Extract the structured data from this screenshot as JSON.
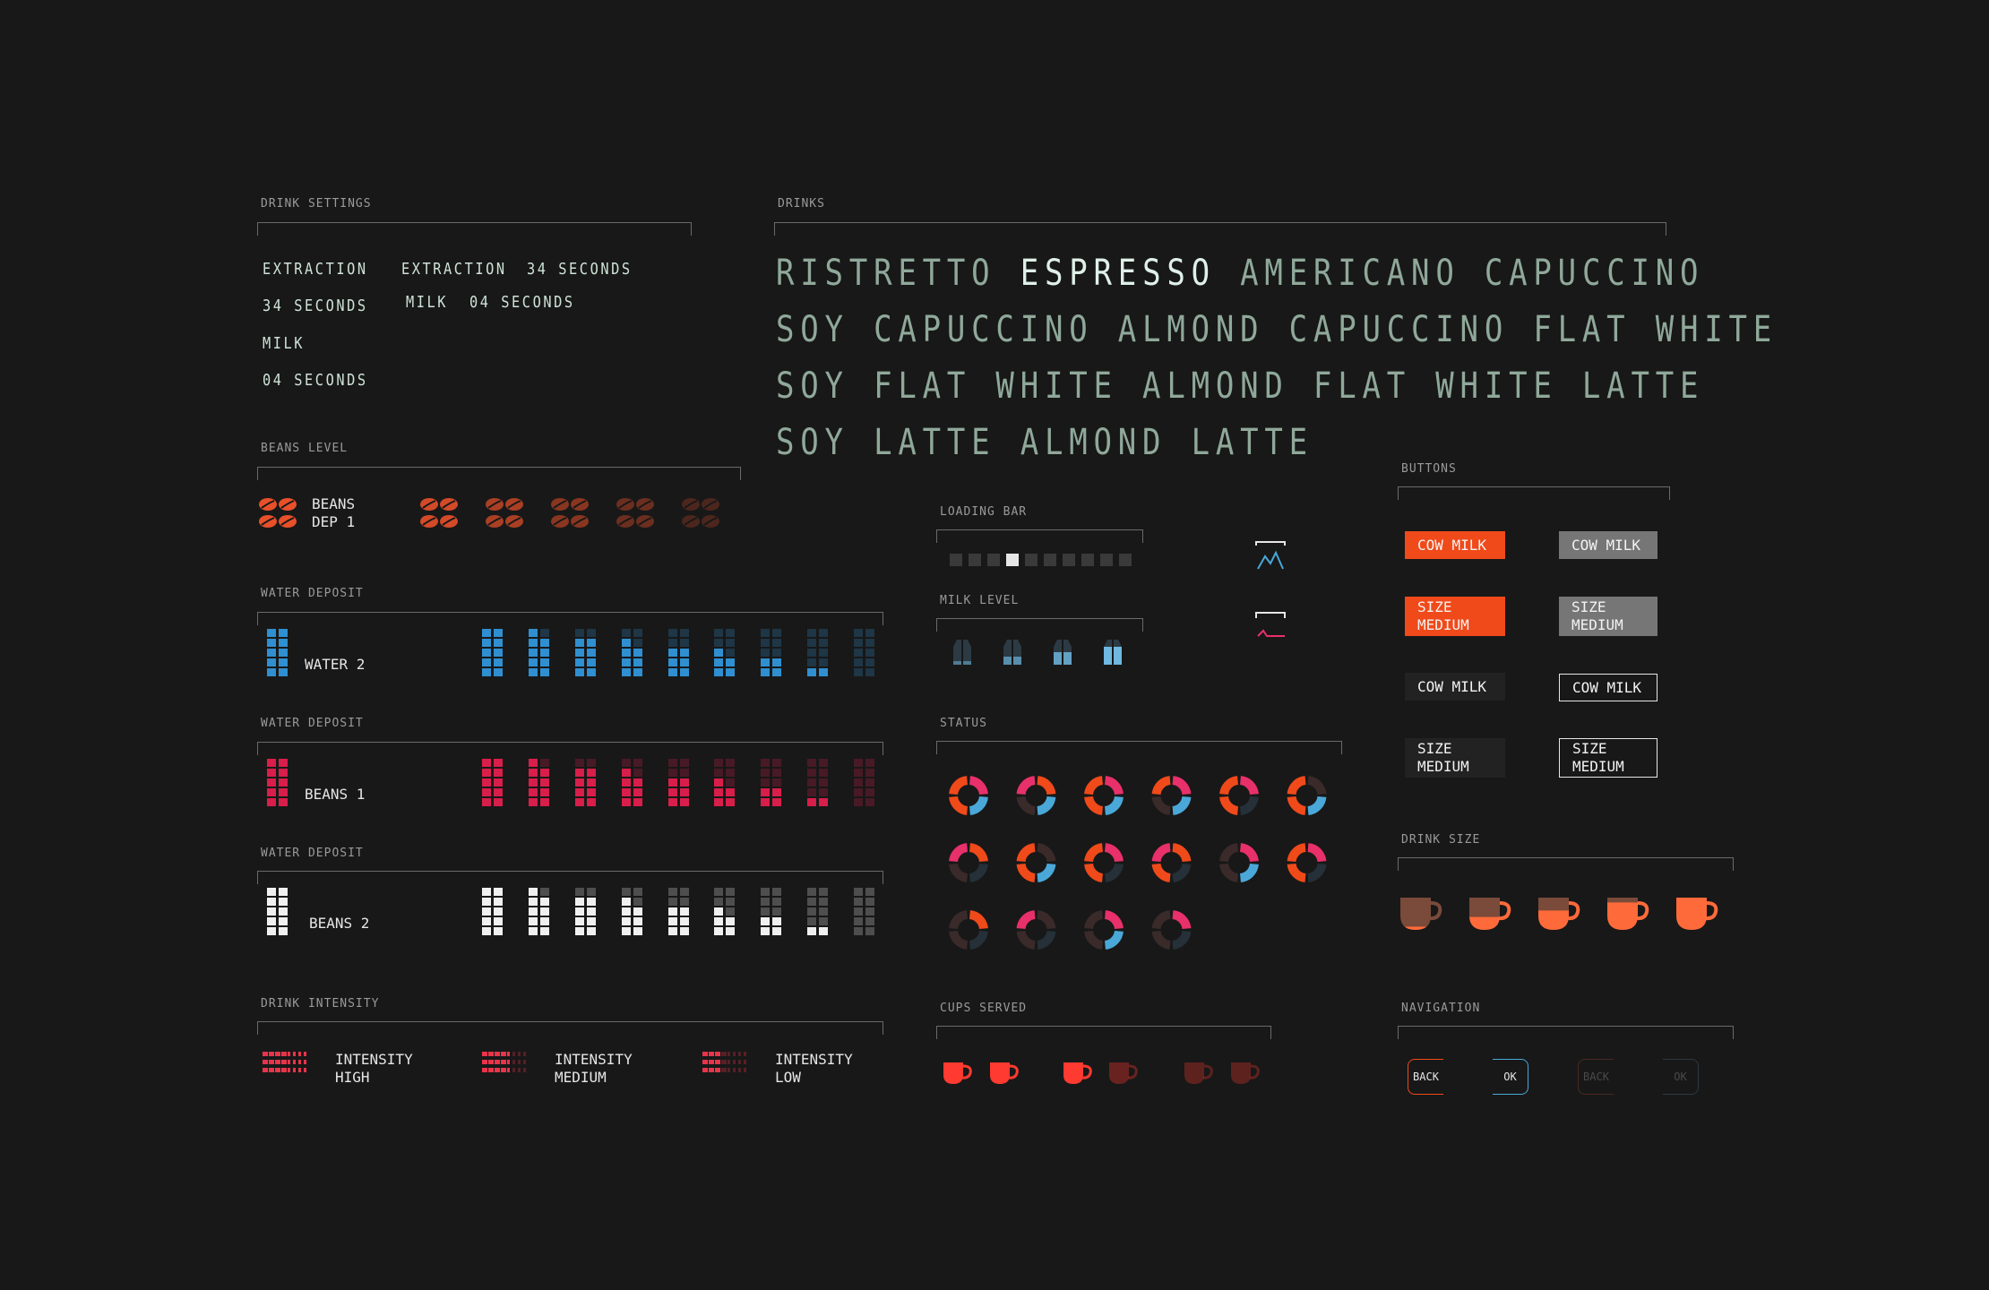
{
  "sections": {
    "drink_settings": "DRINK SETTINGS",
    "drinks": "DRINKS",
    "beans_level": "BEANS LEVEL",
    "water_deposit_1": "WATER DEPOSIT",
    "water_deposit_2": "WATER DEPOSIT",
    "water_deposit_3": "WATER DEPOSIT",
    "drink_intensity": "DRINK INTENSITY",
    "loading_bar": "LOADING BAR",
    "milk_level": "MILK LEVEL",
    "status": "STATUS",
    "cups_served": "CUPS SERVED",
    "buttons": "BUTTONS",
    "drink_size": "DRINK SIZE",
    "navigation": "NAVIGATION"
  },
  "drink_settings": {
    "col1": [
      "EXTRACTION",
      "34 SECONDS",
      "MILK",
      "04 SECONDS"
    ],
    "col2_line1_a": "EXTRACTION",
    "col2_line1_b": "34 SECONDS",
    "col2_line2_a": "MILK",
    "col2_line2_b": "04 SECONDS"
  },
  "drinks": {
    "line1": [
      "RISTRETTO",
      "ESPRESSO",
      "AMERICANO",
      "CAPUCCINO"
    ],
    "line2": "SOY CAPUCCINO ALMOND CAPUCCINO FLAT WHITE",
    "line3": "SOY FLAT WHITE ALMOND FLAT WHITE LATTE",
    "line4": "SOY LATTE ALMOND LATTE"
  },
  "beans": {
    "label_line1": "BEANS",
    "label_line2": "DEP 1",
    "color": "#e8502a"
  },
  "water_rows": [
    {
      "label": "WATER 2",
      "color": "#2f8fd0"
    },
    {
      "label": "BEANS 1",
      "color": "#d81e4a"
    },
    {
      "label": "BEANS 2",
      "color": "#f0f0f0"
    }
  ],
  "intensity": [
    {
      "line1": "INTENSITY",
      "line2": "HIGH"
    },
    {
      "line1": "INTENSITY",
      "line2": "MEDIUM"
    },
    {
      "line1": "INTENSITY",
      "line2": "LOW"
    }
  ],
  "loading_bar": {
    "segments": 10,
    "active_index": 3
  },
  "buttons": {
    "b1": "COW MILK",
    "b2": "COW MILK",
    "b3_l1": "SIZE",
    "b3_l2": "MEDIUM",
    "b4_l1": "SIZE",
    "b4_l2": "MEDIUM",
    "b5": "COW MILK",
    "b6": "COW MILK",
    "b7_l1": "SIZE",
    "b7_l2": "MEDIUM",
    "b8_l1": "SIZE",
    "b8_l2": "MEDIUM"
  },
  "navigation": {
    "back": "BACK",
    "ok": "OK",
    "back_disabled": "BACK",
    "ok_disabled": "OK"
  },
  "colors": {
    "orange": "#f04a1a",
    "blue": "#4aa8d8",
    "pink": "#e8306a",
    "cup": "#ff6a3a"
  }
}
